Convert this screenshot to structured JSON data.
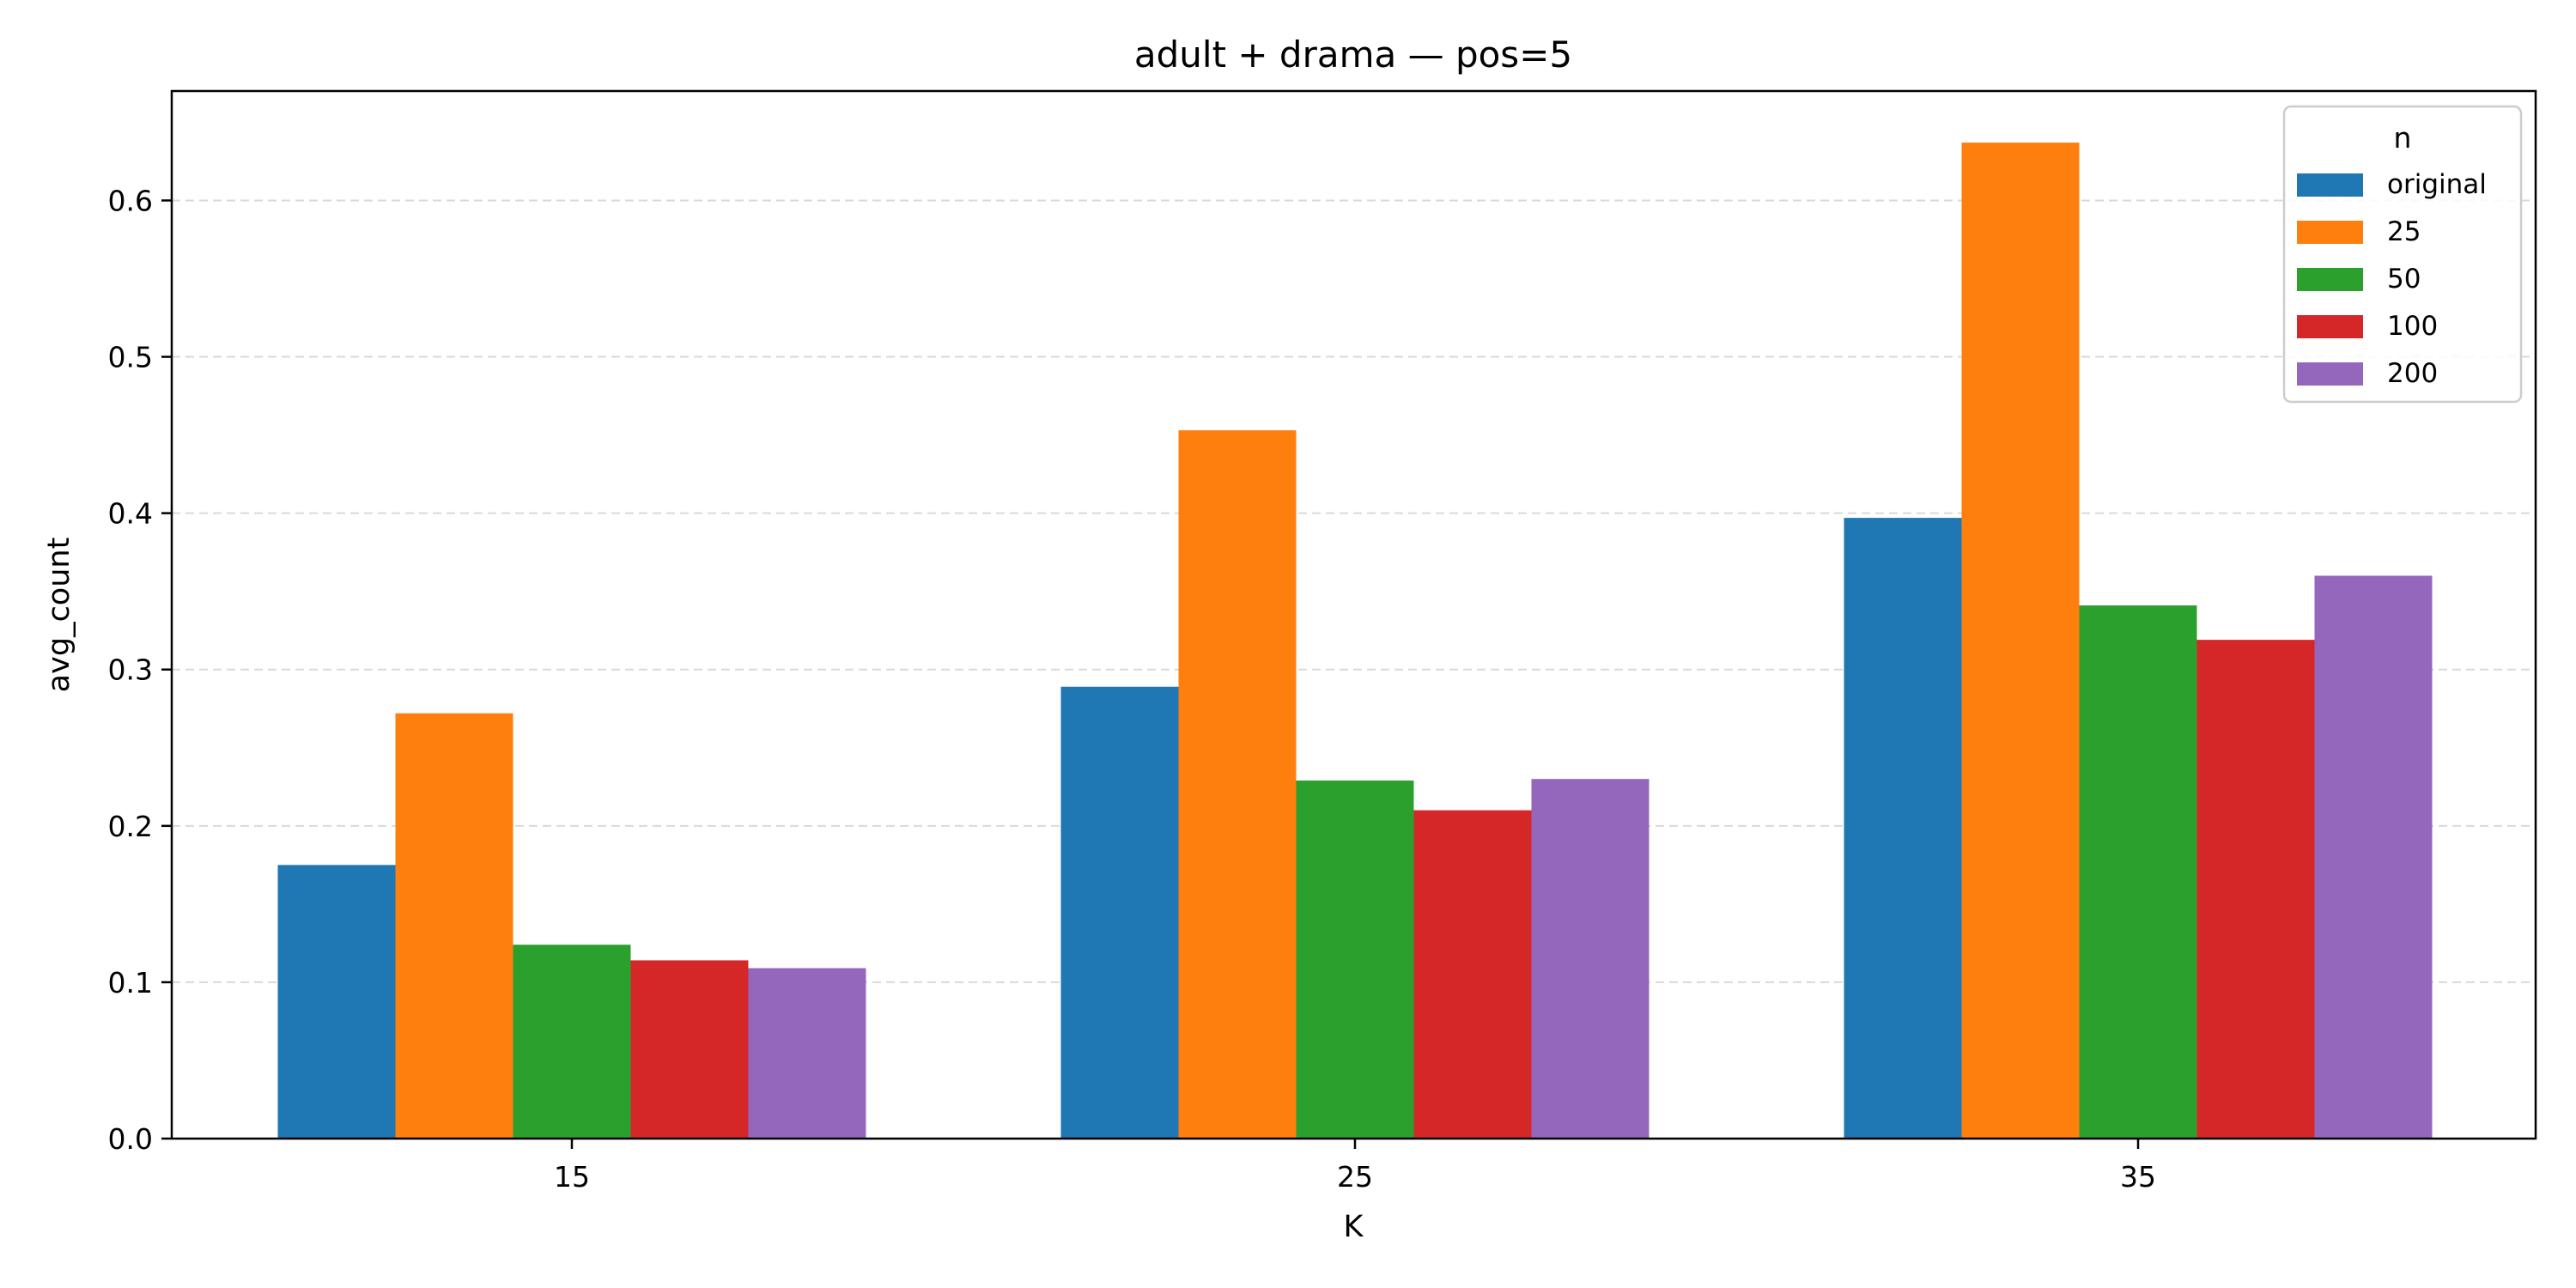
{
  "chart_data": {
    "type": "bar",
    "title": "adult + drama — pos=5",
    "xlabel": "K",
    "ylabel": "avg_count",
    "categories": [
      "15",
      "25",
      "35"
    ],
    "ylim": [
      0,
      0.67
    ],
    "yticks": [
      0.0,
      0.1,
      0.2,
      0.3,
      0.4,
      0.5,
      0.6
    ],
    "ytick_labels": [
      "0.0",
      "0.1",
      "0.2",
      "0.3",
      "0.4",
      "0.5",
      "0.6"
    ],
    "grid": "y-dashed",
    "legend": {
      "title": "n",
      "placement": "top-right"
    },
    "series": [
      {
        "name": "original",
        "color": "#1f77b4",
        "values": [
          0.175,
          0.289,
          0.397
        ]
      },
      {
        "name": "25",
        "color": "#ff7f0e",
        "values": [
          0.272,
          0.453,
          0.637
        ]
      },
      {
        "name": "50",
        "color": "#2ca02c",
        "values": [
          0.124,
          0.229,
          0.341
        ]
      },
      {
        "name": "100",
        "color": "#d62728",
        "values": [
          0.114,
          0.21,
          0.319
        ]
      },
      {
        "name": "200",
        "color": "#9467bd",
        "values": [
          0.109,
          0.23,
          0.36
        ]
      }
    ]
  }
}
